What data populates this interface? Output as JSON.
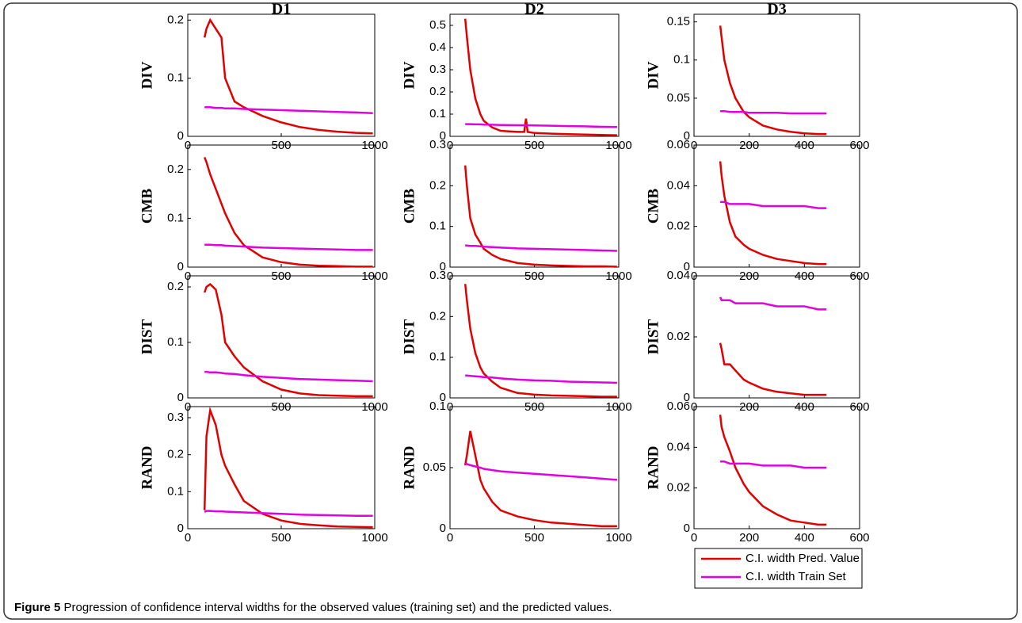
{
  "chart_data": [
    {
      "type": "line",
      "title": "D1",
      "ylabel": "DIV",
      "x": [
        90,
        100,
        120,
        150,
        180,
        200,
        250,
        300,
        400,
        500,
        600,
        700,
        800,
        900,
        990
      ],
      "xlim": [
        0,
        1000
      ],
      "xticks": [
        0,
        500,
        1000
      ],
      "ylim": [
        0,
        0.21
      ],
      "yticks": [
        0,
        0.1,
        0.2
      ],
      "series": [
        {
          "color": "#e00000",
          "values": [
            0.17,
            0.185,
            0.2,
            0.185,
            0.17,
            0.1,
            0.06,
            0.05,
            0.035,
            0.024,
            0.016,
            0.011,
            0.008,
            0.006,
            0.005
          ]
        },
        {
          "color": "#e000e0",
          "values": [
            0.05,
            0.05,
            0.05,
            0.049,
            0.049,
            0.048,
            0.048,
            0.047,
            0.046,
            0.045,
            0.044,
            0.043,
            0.042,
            0.041,
            0.04
          ]
        }
      ]
    },
    {
      "type": "line",
      "title": "D2",
      "ylabel": "DIV",
      "x": [
        90,
        100,
        120,
        150,
        180,
        200,
        250,
        300,
        400,
        440,
        450,
        460,
        500,
        600,
        700,
        800,
        900,
        990
      ],
      "xlim": [
        0,
        1000
      ],
      "xticks": [
        0,
        500,
        1000
      ],
      "ylim": [
        0,
        0.55
      ],
      "yticks": [
        0,
        0.1,
        0.2,
        0.3,
        0.4,
        0.5
      ],
      "series": [
        {
          "color": "#e00000",
          "values": [
            0.53,
            0.45,
            0.3,
            0.17,
            0.1,
            0.07,
            0.04,
            0.025,
            0.02,
            0.02,
            0.08,
            0.02,
            0.015,
            0.012,
            0.01,
            0.008,
            0.006,
            0.005
          ]
        },
        {
          "color": "#e000e0",
          "values": [
            0.055,
            0.055,
            0.055,
            0.054,
            0.054,
            0.053,
            0.052,
            0.051,
            0.05,
            0.05,
            0.05,
            0.05,
            0.049,
            0.048,
            0.046,
            0.045,
            0.043,
            0.042
          ]
        }
      ]
    },
    {
      "type": "line",
      "title": "D3",
      "ylabel": "DIV",
      "x": [
        95,
        100,
        110,
        130,
        150,
        180,
        200,
        250,
        300,
        350,
        400,
        450,
        480
      ],
      "xlim": [
        0,
        600
      ],
      "xticks": [
        0,
        200,
        400,
        600
      ],
      "ylim": [
        0,
        0.16
      ],
      "yticks": [
        0,
        0.05,
        0.1,
        0.15
      ],
      "series": [
        {
          "color": "#e00000",
          "values": [
            0.145,
            0.13,
            0.1,
            0.07,
            0.05,
            0.032,
            0.025,
            0.014,
            0.009,
            0.006,
            0.004,
            0.003,
            0.003
          ]
        },
        {
          "color": "#e000e0",
          "values": [
            0.033,
            0.033,
            0.033,
            0.032,
            0.032,
            0.032,
            0.031,
            0.031,
            0.031,
            0.03,
            0.03,
            0.03,
            0.03
          ]
        }
      ]
    },
    {
      "type": "line",
      "ylabel": "CMB",
      "x": [
        90,
        100,
        120,
        150,
        180,
        200,
        250,
        300,
        400,
        500,
        600,
        700,
        800,
        900,
        990
      ],
      "xlim": [
        0,
        1000
      ],
      "xticks": [
        0,
        500,
        1000
      ],
      "ylim": [
        0,
        0.25
      ],
      "yticks": [
        0,
        0.1,
        0.2
      ],
      "series": [
        {
          "color": "#e00000",
          "values": [
            0.225,
            0.215,
            0.19,
            0.16,
            0.13,
            0.11,
            0.07,
            0.045,
            0.02,
            0.01,
            0.005,
            0.003,
            0.002,
            0.001,
            0.001
          ]
        },
        {
          "color": "#e000e0",
          "values": [
            0.046,
            0.046,
            0.046,
            0.045,
            0.045,
            0.044,
            0.043,
            0.042,
            0.04,
            0.039,
            0.038,
            0.037,
            0.036,
            0.035,
            0.035
          ]
        }
      ]
    },
    {
      "type": "line",
      "ylabel": "CMB",
      "x": [
        90,
        100,
        120,
        150,
        180,
        200,
        250,
        300,
        400,
        500,
        600,
        700,
        800,
        900,
        990
      ],
      "xlim": [
        0,
        1000
      ],
      "xticks": [
        0,
        500,
        1000
      ],
      "ylim": [
        0,
        0.3
      ],
      "yticks": [
        0,
        0.1,
        0.2,
        0.3
      ],
      "series": [
        {
          "color": "#e00000",
          "values": [
            0.25,
            0.2,
            0.12,
            0.08,
            0.06,
            0.045,
            0.03,
            0.02,
            0.01,
            0.006,
            0.004,
            0.003,
            0.002,
            0.002,
            0.001
          ]
        },
        {
          "color": "#e000e0",
          "values": [
            0.053,
            0.053,
            0.052,
            0.052,
            0.051,
            0.05,
            0.049,
            0.048,
            0.046,
            0.045,
            0.044,
            0.043,
            0.042,
            0.041,
            0.04
          ]
        }
      ]
    },
    {
      "type": "line",
      "ylabel": "CMB",
      "x": [
        95,
        100,
        110,
        130,
        150,
        180,
        200,
        250,
        300,
        350,
        400,
        450,
        480
      ],
      "xlim": [
        0,
        600
      ],
      "xticks": [
        0,
        200,
        400,
        600
      ],
      "ylim": [
        0,
        0.06
      ],
      "yticks": [
        0,
        0.02,
        0.04,
        0.06
      ],
      "series": [
        {
          "color": "#e00000",
          "values": [
            0.052,
            0.045,
            0.035,
            0.022,
            0.015,
            0.011,
            0.009,
            0.006,
            0.004,
            0.003,
            0.002,
            0.0015,
            0.0015
          ]
        },
        {
          "color": "#e000e0",
          "values": [
            0.032,
            0.032,
            0.032,
            0.031,
            0.031,
            0.031,
            0.031,
            0.03,
            0.03,
            0.03,
            0.03,
            0.029,
            0.029
          ]
        }
      ]
    },
    {
      "type": "line",
      "ylabel": "DIST",
      "x": [
        90,
        100,
        120,
        150,
        180,
        200,
        250,
        300,
        400,
        500,
        600,
        700,
        800,
        900,
        990
      ],
      "xlim": [
        0,
        1000
      ],
      "xticks": [
        0,
        500,
        1000
      ],
      "ylim": [
        0,
        0.22
      ],
      "yticks": [
        0,
        0.1,
        0.2
      ],
      "series": [
        {
          "color": "#e00000",
          "values": [
            0.19,
            0.2,
            0.205,
            0.195,
            0.15,
            0.1,
            0.075,
            0.055,
            0.03,
            0.015,
            0.008,
            0.005,
            0.004,
            0.003,
            0.003
          ]
        },
        {
          "color": "#e000e0",
          "values": [
            0.047,
            0.047,
            0.046,
            0.046,
            0.045,
            0.044,
            0.043,
            0.041,
            0.038,
            0.036,
            0.034,
            0.033,
            0.032,
            0.031,
            0.03
          ]
        }
      ]
    },
    {
      "type": "line",
      "ylabel": "DIST",
      "x": [
        90,
        100,
        120,
        150,
        180,
        200,
        250,
        300,
        400,
        500,
        600,
        700,
        800,
        900,
        990
      ],
      "xlim": [
        0,
        1000
      ],
      "xticks": [
        0,
        500,
        1000
      ],
      "ylim": [
        0,
        0.3
      ],
      "yticks": [
        0,
        0.1,
        0.2,
        0.3
      ],
      "series": [
        {
          "color": "#e00000",
          "values": [
            0.28,
            0.24,
            0.17,
            0.11,
            0.075,
            0.06,
            0.04,
            0.025,
            0.012,
            0.008,
            0.006,
            0.005,
            0.004,
            0.003,
            0.003
          ]
        },
        {
          "color": "#e000e0",
          "values": [
            0.055,
            0.055,
            0.054,
            0.053,
            0.052,
            0.051,
            0.05,
            0.048,
            0.045,
            0.043,
            0.042,
            0.04,
            0.039,
            0.038,
            0.037
          ]
        }
      ]
    },
    {
      "type": "line",
      "ylabel": "DIST",
      "x": [
        95,
        100,
        110,
        130,
        150,
        180,
        200,
        250,
        300,
        350,
        400,
        450,
        480
      ],
      "xlim": [
        0,
        600
      ],
      "xticks": [
        0,
        200,
        400,
        600
      ],
      "ylim": [
        0,
        0.04
      ],
      "yticks": [
        0,
        0.02,
        0.04
      ],
      "series": [
        {
          "color": "#e00000",
          "values": [
            0.018,
            0.016,
            0.011,
            0.011,
            0.009,
            0.006,
            0.005,
            0.003,
            0.002,
            0.0015,
            0.001,
            0.001,
            0.001
          ]
        },
        {
          "color": "#e000e0",
          "values": [
            0.033,
            0.032,
            0.032,
            0.032,
            0.031,
            0.031,
            0.031,
            0.031,
            0.03,
            0.03,
            0.03,
            0.029,
            0.029
          ]
        }
      ]
    },
    {
      "type": "line",
      "ylabel": "RAND",
      "x": [
        90,
        100,
        120,
        150,
        180,
        200,
        250,
        300,
        400,
        500,
        600,
        700,
        800,
        900,
        990
      ],
      "xlim": [
        0,
        1000
      ],
      "xticks": [
        0,
        500,
        1000
      ],
      "ylim": [
        0,
        0.33
      ],
      "yticks": [
        0,
        0.1,
        0.2,
        0.3
      ],
      "series": [
        {
          "color": "#e00000",
          "values": [
            0.05,
            0.25,
            0.32,
            0.28,
            0.2,
            0.17,
            0.12,
            0.075,
            0.04,
            0.022,
            0.013,
            0.009,
            0.006,
            0.005,
            0.004
          ]
        },
        {
          "color": "#e000e0",
          "values": [
            0.045,
            0.048,
            0.048,
            0.047,
            0.047,
            0.046,
            0.045,
            0.044,
            0.042,
            0.04,
            0.038,
            0.037,
            0.036,
            0.035,
            0.035
          ]
        }
      ]
    },
    {
      "type": "line",
      "ylabel": "RAND",
      "x": [
        90,
        100,
        120,
        150,
        180,
        200,
        250,
        300,
        400,
        500,
        600,
        700,
        800,
        900,
        990
      ],
      "xlim": [
        0,
        1000
      ],
      "xticks": [
        0,
        500,
        1000
      ],
      "ylim": [
        0,
        0.1
      ],
      "yticks": [
        0,
        0.05,
        0.1
      ],
      "series": [
        {
          "color": "#e00000",
          "values": [
            0.052,
            0.06,
            0.08,
            0.06,
            0.04,
            0.033,
            0.022,
            0.015,
            0.01,
            0.007,
            0.005,
            0.004,
            0.003,
            0.002,
            0.002
          ]
        },
        {
          "color": "#e000e0",
          "values": [
            0.053,
            0.053,
            0.052,
            0.051,
            0.05,
            0.049,
            0.048,
            0.047,
            0.046,
            0.045,
            0.044,
            0.043,
            0.042,
            0.041,
            0.04
          ]
        }
      ]
    },
    {
      "type": "line",
      "ylabel": "RAND",
      "x": [
        95,
        100,
        110,
        130,
        150,
        180,
        200,
        250,
        300,
        350,
        400,
        450,
        480
      ],
      "xlim": [
        0,
        600
      ],
      "xticks": [
        0,
        200,
        400,
        600
      ],
      "ylim": [
        0,
        0.06
      ],
      "yticks": [
        0,
        0.02,
        0.04,
        0.06
      ],
      "legend": "below",
      "series": [
        {
          "name": "C.I. width Pred. Value",
          "color": "#e00000",
          "values": [
            0.056,
            0.05,
            0.045,
            0.038,
            0.03,
            0.022,
            0.018,
            0.011,
            0.007,
            0.004,
            0.003,
            0.002,
            0.002
          ]
        },
        {
          "name": "C.I. width Train Set",
          "color": "#e000e0",
          "values": [
            0.033,
            0.033,
            0.033,
            0.032,
            0.032,
            0.032,
            0.032,
            0.031,
            0.031,
            0.031,
            0.03,
            0.03,
            0.03
          ]
        }
      ]
    }
  ],
  "caption": {
    "label": "Figure 5",
    "text": "Progression of confidence interval widths for the observed values (training set) and the predicted values."
  }
}
